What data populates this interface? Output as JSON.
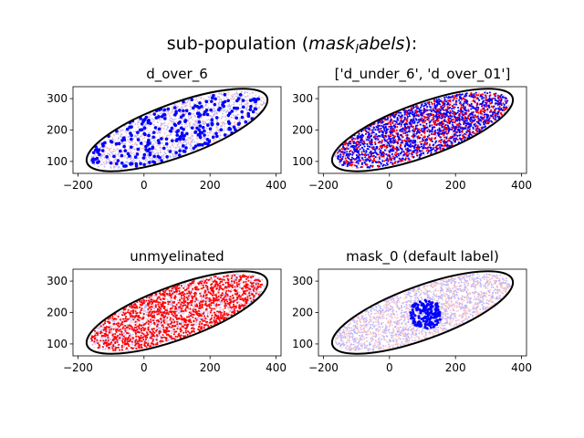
{
  "figure": {
    "title_text": "sub-population (",
    "title_math": "mask",
    "title_sub": "l",
    "title_math2": "abels",
    "title_end": "):"
  },
  "colors": {
    "highlight": "#0000ff",
    "red": "#ff0000",
    "background_pink": "#ffc8c8",
    "background_blue": "#b4b4ff",
    "ellipse": "#000000"
  },
  "chart_data": [
    {
      "type": "scatter",
      "title": "d_over_6",
      "xticks": [
        -200,
        0,
        200,
        400
      ],
      "yticks": [
        100,
        200,
        300
      ],
      "xlim": [
        -215,
        415
      ],
      "ylim": [
        62,
        338
      ],
      "ellipse": {
        "cx": 100,
        "cy": 200,
        "rx": 290,
        "ry": 85,
        "angle_deg": 20
      },
      "background": {
        "colors": [
          "#ffc8c8",
          "#b4b4ff"
        ],
        "count": 1500
      },
      "highlight": {
        "color": "#0000ff",
        "count": 280,
        "size": 3.0,
        "region": "ellipse"
      }
    },
    {
      "type": "scatter",
      "title": "['d_under_6', 'd_over_01']",
      "xticks": [
        -200,
        0,
        200,
        400
      ],
      "yticks": [
        100,
        200,
        300
      ],
      "xlim": [
        -215,
        415
      ],
      "ylim": [
        62,
        338
      ],
      "ellipse": {
        "cx": 100,
        "cy": 200,
        "rx": 290,
        "ry": 85,
        "angle_deg": 20
      },
      "background": {
        "colors": [
          "#ffc8c8",
          "#b4b4ff"
        ],
        "count": 1200
      },
      "highlight": {
        "colors": [
          "#ff0000",
          "#0000ff",
          "#0000ff"
        ],
        "count": 2200,
        "size": 1.5,
        "region": "ellipse"
      }
    },
    {
      "type": "scatter",
      "title": "unmyelinated",
      "xticks": [
        -200,
        0,
        200,
        400
      ],
      "yticks": [
        100,
        200,
        300
      ],
      "xlim": [
        -215,
        415
      ],
      "ylim": [
        62,
        338
      ],
      "ellipse": {
        "cx": 100,
        "cy": 200,
        "rx": 290,
        "ry": 85,
        "angle_deg": 20
      },
      "background": {
        "colors": [
          "#b4b4ff",
          "#ffc8c8"
        ],
        "count": 1700
      },
      "highlight": {
        "color": "#ff0000",
        "count": 1400,
        "size": 1.5,
        "region": "ellipse"
      }
    },
    {
      "type": "scatter",
      "title": "mask_0 (default label)",
      "xticks": [
        -200,
        0,
        200,
        400
      ],
      "yticks": [
        100,
        200,
        300
      ],
      "xlim": [
        -215,
        415
      ],
      "ylim": [
        62,
        338
      ],
      "ellipse": {
        "cx": 100,
        "cy": 200,
        "rx": 290,
        "ry": 85,
        "angle_deg": 20
      },
      "background": {
        "colors": [
          "#b4b4ff",
          "#ffc8c8"
        ],
        "count": 2200
      },
      "highlight": {
        "color": "#0000ff",
        "count": 160,
        "size": 2.4,
        "region": "circle",
        "circle": {
          "cx": 110,
          "cy": 195,
          "r": 48
        }
      }
    }
  ]
}
